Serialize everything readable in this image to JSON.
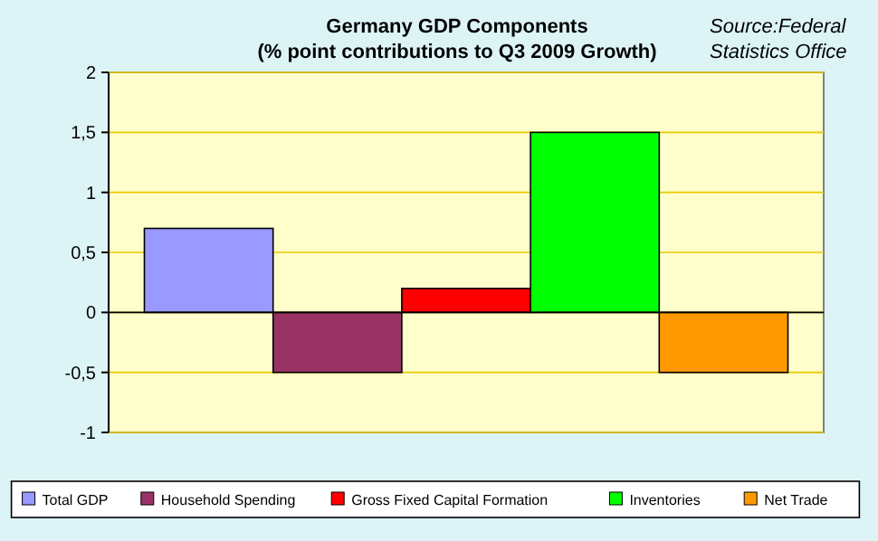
{
  "chart_data": {
    "type": "bar",
    "title": "Germany GDP Components",
    "subtitle": "(% point contributions to Q3 2009 Growth)",
    "annotations": [
      "Source:Federal Statistics Office"
    ],
    "categories": [
      null
    ],
    "series": [
      {
        "name": "Total GDP",
        "color": "#9999ff",
        "values": [
          0.7
        ]
      },
      {
        "name": "Household Spending",
        "color": "#993366",
        "values": [
          -0.5
        ]
      },
      {
        "name": "Gross Fixed Capital Formation",
        "color": "#ff0000",
        "values": [
          0.2
        ]
      },
      {
        "name": "Inventories",
        "color": "#00ff00",
        "values": [
          1.5
        ]
      },
      {
        "name": "Net Trade",
        "color": "#ff9900",
        "values": [
          -0.5
        ]
      }
    ],
    "ylim": [
      -1,
      2
    ],
    "yticks": [
      {
        "value": -1,
        "label": "-1"
      },
      {
        "value": -0.5,
        "label": "-0,5"
      },
      0,
      {
        "value": 0.5,
        "label": "0,5"
      },
      1,
      {
        "value": 1.5,
        "label": "1,5"
      },
      2
    ],
    "grid": "y",
    "legend": "bottom"
  }
}
